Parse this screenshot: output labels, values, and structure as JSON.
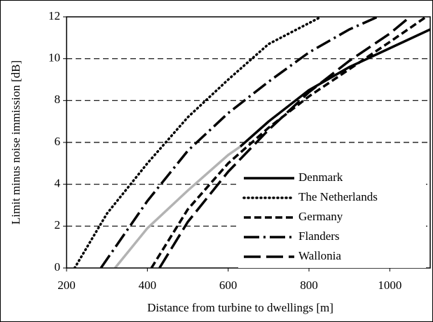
{
  "chart_data": {
    "type": "line",
    "xlabel": "Distance from turbine to dwellings [m]",
    "ylabel": "Limit minus noise immission [dB]",
    "xlim": [
      200,
      1100
    ],
    "xticks": [
      200,
      400,
      600,
      800,
      1000
    ],
    "ylim": [
      0,
      12
    ],
    "yticks": [
      0,
      2,
      4,
      6,
      8,
      10,
      12
    ],
    "grid": true,
    "legend": "lower right",
    "series": [
      {
        "name": "Denmark",
        "color": "#000000",
        "dash": "none",
        "x": [
          630,
          700,
          800,
          900,
          1000,
          1100
        ],
        "values": [
          5.8,
          7.0,
          8.5,
          9.6,
          10.5,
          11.4
        ]
      },
      {
        "name": "The Netherlands",
        "color": "#000000",
        "dash": "1,5",
        "x": [
          220,
          300,
          400,
          500,
          600,
          700,
          830
        ],
        "values": [
          0,
          2.6,
          5.0,
          7.2,
          9.0,
          10.7,
          12
        ]
      },
      {
        "name": "Germany",
        "color": "#000000",
        "dash": "10,5",
        "x": [
          410,
          500,
          600,
          700,
          800,
          900,
          1000,
          1090
        ],
        "values": [
          0,
          2.8,
          5.0,
          6.7,
          8.2,
          9.5,
          10.8,
          12
        ]
      },
      {
        "name": "Flanders",
        "color": "#000000",
        "dash": "22,6,3,6",
        "x": [
          285,
          400,
          500,
          600,
          700,
          800,
          900,
          970
        ],
        "values": [
          0,
          3.2,
          5.6,
          7.4,
          8.9,
          10.3,
          11.4,
          12
        ]
      },
      {
        "name": "Wallonia",
        "color": "#000000",
        "dash": "24,8",
        "x": [
          430,
          500,
          600,
          700,
          800,
          900,
          1000,
          1050
        ],
        "values": [
          0,
          2.2,
          4.6,
          6.6,
          8.4,
          9.9,
          11.2,
          12
        ]
      },
      {
        "color": "#b3b3b3",
        "dash": "none",
        "x": [
          320,
          400,
          500,
          600,
          630
        ],
        "values": [
          0,
          1.9,
          3.7,
          5.4,
          5.8
        ]
      }
    ]
  }
}
